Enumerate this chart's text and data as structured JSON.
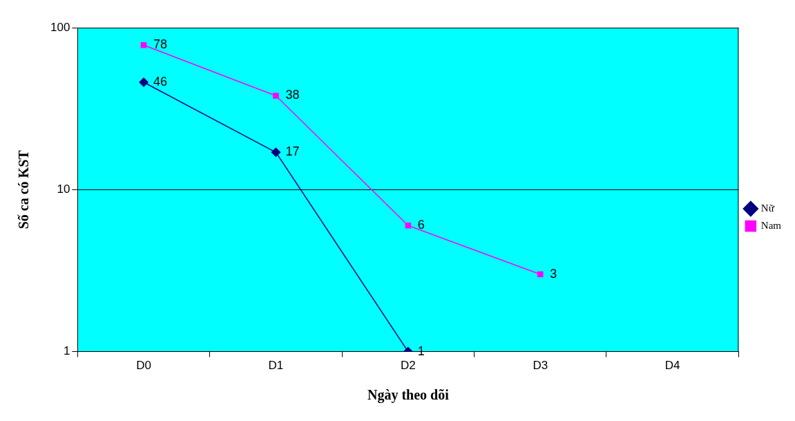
{
  "chart_data": {
    "type": "line",
    "xlabel": "Ngày theo dõi",
    "ylabel": "Số ca có KST",
    "categories": [
      "D0",
      "D1",
      "D2",
      "D3",
      "D4"
    ],
    "series": [
      {
        "name": "Nữ",
        "color": "#000080",
        "marker": "diamond",
        "values": [
          46,
          17,
          1,
          null,
          null
        ]
      },
      {
        "name": "Nam",
        "color": "#ff00ff",
        "marker": "square",
        "values": [
          78,
          38,
          6,
          3,
          null
        ]
      }
    ],
    "log": true,
    "ylim": [
      1,
      100
    ],
    "yticks": [
      1,
      10,
      100
    ],
    "grid": "y",
    "legend": "right",
    "data_labels": true
  }
}
